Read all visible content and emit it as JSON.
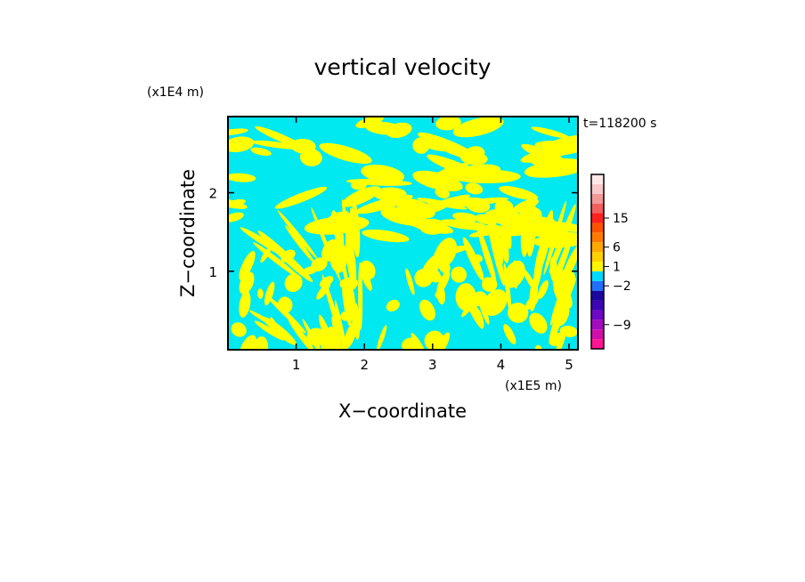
{
  "chart_data": {
    "type": "heatmap",
    "title": "vertical velocity",
    "xlabel": "X−coordinate",
    "ylabel": "Z−coordinate",
    "x_unit": "(x1E5 m)",
    "y_unit": "(x1E4 m)",
    "time_label": "t=118200 s",
    "x_range": [
      0,
      5.13
    ],
    "y_range": [
      0,
      2.97
    ],
    "x_ticks": [
      {
        "value": 1,
        "label": "1"
      },
      {
        "value": 2,
        "label": "2"
      },
      {
        "value": 3,
        "label": "3"
      },
      {
        "value": 4,
        "label": "4"
      },
      {
        "value": 5,
        "label": "5"
      }
    ],
    "y_ticks": [
      {
        "value": 1,
        "label": "1"
      },
      {
        "value": 2,
        "label": "2"
      }
    ],
    "field_colors": {
      "positive": "#ffff00",
      "negative": "#00e8f0"
    },
    "colorbar": {
      "bands": [
        {
          "color": "#ff1493"
        },
        {
          "color": "#d10fa8"
        },
        {
          "color": "#a20bbf"
        },
        {
          "color": "#6e08c4"
        },
        {
          "color": "#3c06b4"
        },
        {
          "color": "#1a08a0"
        },
        {
          "color": "#2070ff"
        },
        {
          "color": "#00d8ff"
        },
        {
          "color": "#fff600"
        },
        {
          "color": "#ffd000"
        },
        {
          "color": "#ffa800"
        },
        {
          "color": "#ff7b00"
        },
        {
          "color": "#ff5200"
        },
        {
          "color": "#ff2020"
        },
        {
          "color": "#f06060"
        },
        {
          "color": "#f39898"
        },
        {
          "color": "#f9c8c8"
        },
        {
          "color": "#fde8e8"
        }
      ],
      "labels": [
        {
          "text": "15",
          "band": 13
        },
        {
          "text": "6",
          "band": 10
        },
        {
          "text": "1",
          "band": 8
        },
        {
          "text": "−2",
          "band": 6
        },
        {
          "text": "−9",
          "band": 2
        }
      ]
    }
  }
}
